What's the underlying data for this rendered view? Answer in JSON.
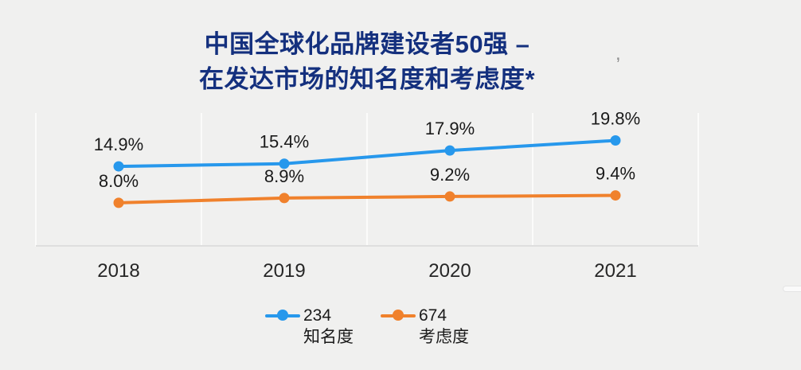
{
  "page": {
    "background": "#f0f0ef"
  },
  "title": {
    "line1": "中国全球化品牌建设者50强 –",
    "line2": "在发达市场的知名度和考虑度*",
    "color": "#14307E"
  },
  "decorations": {
    "stray_mark": ","
  },
  "chart_data": {
    "type": "line",
    "title": "中国全球化品牌建设者50强 – 在发达市场的知名度和考虑度*",
    "categories": [
      "2018",
      "2019",
      "2020",
      "2021"
    ],
    "series": [
      {
        "name": "234 知名度",
        "legend_value": "234",
        "legend_label": "知名度",
        "color": "#2798EC",
        "values": [
          14.9,
          15.4,
          17.9,
          19.8
        ],
        "point_labels": [
          "14.9%",
          "15.4%",
          "17.9%",
          "19.8%"
        ]
      },
      {
        "name": "674 考虑度",
        "legend_value": "674",
        "legend_label": "考虑度",
        "color": "#F0812C",
        "values": [
          8.0,
          8.9,
          9.2,
          9.4
        ],
        "point_labels": [
          "8.0%",
          "8.9%",
          "9.2%",
          "9.4%"
        ]
      }
    ],
    "ylim": [
      0,
      25
    ],
    "xlabel": "",
    "ylabel": "",
    "grid": "vertical-category-boundaries",
    "legend_position": "bottom",
    "point_label_color": "#1a1a1a",
    "tick_label_color": "#262626",
    "gridline_color": "#fbfbfa",
    "axis_line_color": "#dedede"
  }
}
